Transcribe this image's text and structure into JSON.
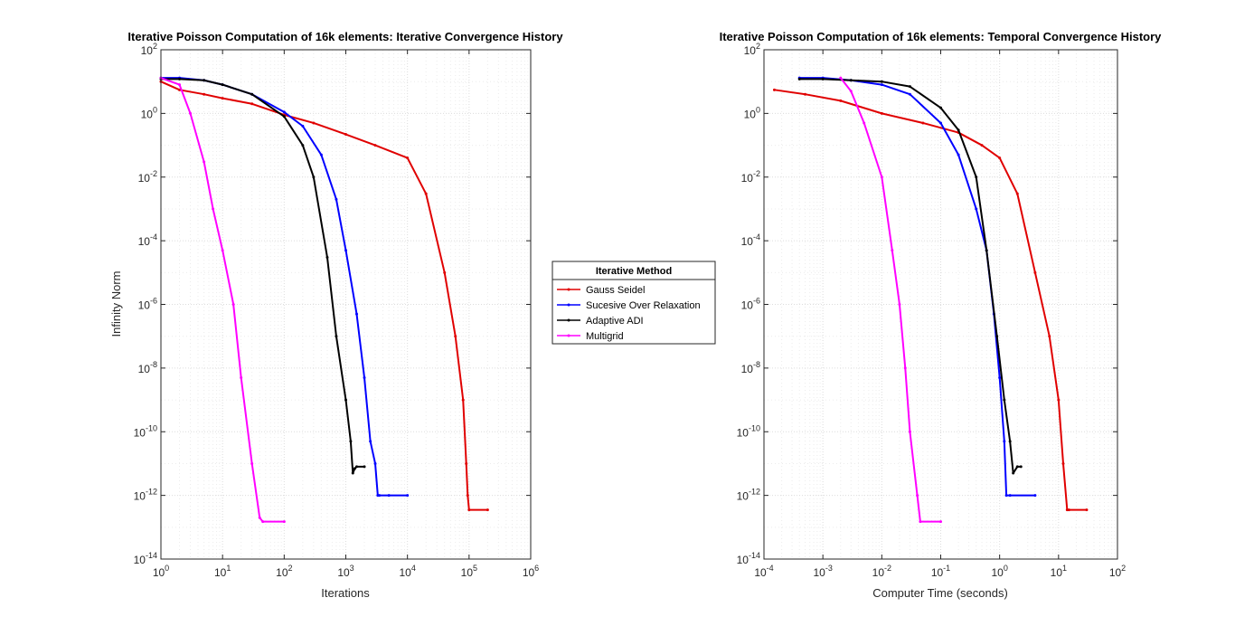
{
  "chart_data": [
    {
      "type": "line",
      "title": "Iterative Poisson Computation of 16k elements: Iterative Convergence History",
      "xlabel": "Iterations",
      "ylabel": "Infinity Norm",
      "xscale": "log",
      "yscale": "log",
      "xlim": [
        1,
        1000000
      ],
      "ylim": [
        1e-14,
        100
      ],
      "grid": "on",
      "x_tick_labels": [
        {
          "base": "10",
          "exp": "0"
        },
        {
          "base": "10",
          "exp": "1"
        },
        {
          "base": "10",
          "exp": "2"
        },
        {
          "base": "10",
          "exp": "3"
        },
        {
          "base": "10",
          "exp": "4"
        },
        {
          "base": "10",
          "exp": "5"
        },
        {
          "base": "10",
          "exp": "6"
        }
      ],
      "y_tick_labels": [
        {
          "base": "10",
          "exp": "-14"
        },
        {
          "base": "10",
          "exp": "-12"
        },
        {
          "base": "10",
          "exp": "-10"
        },
        {
          "base": "10",
          "exp": "-8"
        },
        {
          "base": "10",
          "exp": "-6"
        },
        {
          "base": "10",
          "exp": "-4"
        },
        {
          "base": "10",
          "exp": "-2"
        },
        {
          "base": "10",
          "exp": "0"
        },
        {
          "base": "10",
          "exp": "2"
        }
      ],
      "series": [
        {
          "name": "Gauss Seidel",
          "color": "#e00000",
          "x": [
            1,
            2,
            5,
            10,
            30,
            100,
            300,
            1000,
            3000,
            10000,
            20000,
            40000,
            60000,
            80000,
            90000,
            95000,
            100000,
            200000
          ],
          "y": [
            10,
            5.5,
            4,
            3,
            2,
            0.9,
            0.5,
            0.22,
            0.1,
            0.04,
            0.003,
            1e-05,
            1e-07,
            1e-09,
            1e-11,
            1e-12,
            3.5e-13,
            3.5e-13
          ]
        },
        {
          "name": "Sucesive Over Relaxation",
          "color": "#0000ff",
          "x": [
            1,
            2,
            5,
            10,
            30,
            100,
            200,
            400,
            700,
            1000,
            1500,
            2000,
            2500,
            3000,
            3300,
            3500,
            5000,
            10000
          ],
          "y": [
            13,
            13,
            11,
            8,
            4,
            1.1,
            0.4,
            0.05,
            0.002,
            5e-05,
            5e-07,
            5e-09,
            5e-11,
            1e-11,
            1e-12,
            1e-12,
            1e-12,
            1e-12
          ]
        },
        {
          "name": "Adaptive ADI",
          "color": "#000000",
          "x": [
            1,
            2,
            5,
            10,
            30,
            100,
            200,
            300,
            500,
            700,
            1000,
            1200,
            1300,
            1400,
            1500,
            2000
          ],
          "y": [
            12,
            12,
            11,
            8,
            4,
            0.8,
            0.1,
            0.01,
            3e-05,
            1e-07,
            1e-09,
            5e-11,
            5e-12,
            7e-12,
            8e-12,
            8e-12
          ]
        },
        {
          "name": "Multigrid",
          "color": "#ff00ff",
          "x": [
            1,
            2,
            3,
            5,
            7,
            10,
            15,
            20,
            30,
            40,
            45,
            100
          ],
          "y": [
            13,
            8,
            1,
            0.03,
            0.001,
            5e-05,
            1e-06,
            5e-09,
            1e-11,
            2e-13,
            1.5e-13,
            1.5e-13
          ]
        }
      ]
    },
    {
      "type": "line",
      "title": "Iterative Poisson Computation of 16k elements: Temporal Convergence History",
      "xlabel": "Computer Time (seconds)",
      "ylabel": "",
      "xscale": "log",
      "yscale": "log",
      "xlim": [
        0.0001,
        100
      ],
      "ylim": [
        1e-14,
        100
      ],
      "grid": "on",
      "x_tick_labels": [
        {
          "base": "10",
          "exp": "-4"
        },
        {
          "base": "10",
          "exp": "-3"
        },
        {
          "base": "10",
          "exp": "-2"
        },
        {
          "base": "10",
          "exp": "-1"
        },
        {
          "base": "10",
          "exp": "0"
        },
        {
          "base": "10",
          "exp": "1"
        },
        {
          "base": "10",
          "exp": "2"
        }
      ],
      "y_tick_labels": [
        {
          "base": "10",
          "exp": "-14"
        },
        {
          "base": "10",
          "exp": "-12"
        },
        {
          "base": "10",
          "exp": "-10"
        },
        {
          "base": "10",
          "exp": "-8"
        },
        {
          "base": "10",
          "exp": "-6"
        },
        {
          "base": "10",
          "exp": "-4"
        },
        {
          "base": "10",
          "exp": "-2"
        },
        {
          "base": "10",
          "exp": "0"
        },
        {
          "base": "10",
          "exp": "2"
        }
      ],
      "series": [
        {
          "name": "Gauss Seidel",
          "color": "#e00000",
          "x": [
            0.00015,
            0.0005,
            0.002,
            0.01,
            0.05,
            0.2,
            0.5,
            1.0,
            2.0,
            4.0,
            7.0,
            10,
            12,
            14,
            15,
            30
          ],
          "y": [
            5.5,
            4,
            2.5,
            1,
            0.5,
            0.25,
            0.1,
            0.04,
            0.003,
            1e-05,
            1e-07,
            1e-09,
            1e-11,
            3.5e-13,
            3.5e-13,
            3.5e-13
          ]
        },
        {
          "name": "Sucesive Over Relaxation",
          "color": "#0000ff",
          "x": [
            0.0004,
            0.001,
            0.003,
            0.01,
            0.03,
            0.1,
            0.2,
            0.4,
            0.6,
            0.8,
            1.0,
            1.2,
            1.3,
            1.5,
            4.0
          ],
          "y": [
            13,
            13,
            11,
            8,
            4,
            0.5,
            0.05,
            0.001,
            5e-05,
            5e-07,
            5e-09,
            5e-11,
            1e-12,
            1e-12,
            1e-12
          ]
        },
        {
          "name": "Adaptive ADI",
          "color": "#000000",
          "x": [
            0.0004,
            0.001,
            0.003,
            0.01,
            0.03,
            0.1,
            0.2,
            0.4,
            0.6,
            0.9,
            1.2,
            1.5,
            1.7,
            2.0,
            2.3
          ],
          "y": [
            12,
            12,
            11,
            10,
            7,
            1.5,
            0.3,
            0.01,
            5e-05,
            1e-07,
            1e-09,
            5e-11,
            5e-12,
            8e-12,
            8e-12
          ]
        },
        {
          "name": "Multigrid",
          "color": "#ff00ff",
          "x": [
            0.002,
            0.003,
            0.005,
            0.01,
            0.015,
            0.02,
            0.025,
            0.03,
            0.04,
            0.045,
            0.1
          ],
          "y": [
            13,
            5,
            0.5,
            0.01,
            5e-05,
            1e-06,
            1e-08,
            1e-10,
            1e-12,
            1.5e-13,
            1.5e-13
          ]
        }
      ]
    }
  ],
  "legend": {
    "title": "Iterative Method",
    "placement": "between the two plots",
    "entries": [
      {
        "label": "Gauss Seidel",
        "color": "#e00000"
      },
      {
        "label": "Sucesive Over Relaxation",
        "color": "#0000ff"
      },
      {
        "label": "Adaptive ADI",
        "color": "#000000"
      },
      {
        "label": "Multigrid",
        "color": "#ff00ff"
      }
    ]
  }
}
